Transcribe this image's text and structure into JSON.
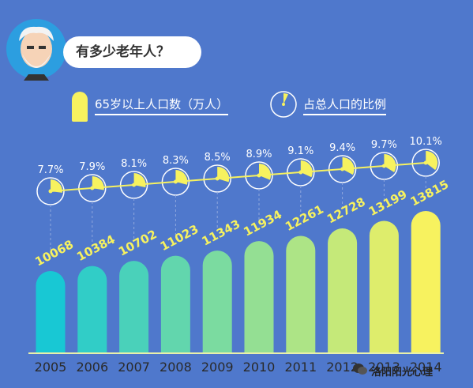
{
  "title": "有多少老年人？",
  "legend": {
    "population_label": "65岁以上人口数（万人）",
    "ratio_label": "占总人口的比例"
  },
  "credit": "洛阳阳光心理",
  "colors": {
    "background": "#4f78cc",
    "bar_start": "#18c8d4",
    "bar_end": "#f7f25f",
    "value_label": "#f7f25f"
  },
  "chart_data": {
    "type": "bar",
    "categories": [
      "2005",
      "2006",
      "2007",
      "2008",
      "2009",
      "2010",
      "2011",
      "2012",
      "2013",
      "2014"
    ],
    "series": [
      {
        "name": "65岁以上人口数（万人）",
        "values": [
          10068,
          10384,
          10702,
          11023,
          11343,
          11934,
          12261,
          12728,
          13199,
          13815
        ]
      },
      {
        "name": "占总人口的比例",
        "values": [
          7.7,
          7.9,
          8.1,
          8.3,
          8.5,
          8.9,
          9.1,
          9.4,
          9.7,
          10.1
        ],
        "unit": "%"
      }
    ],
    "bar_labels": [
      "10068",
      "10384",
      "10702",
      "11023",
      "11343",
      "11934",
      "12261",
      "12728",
      "13199",
      "13815"
    ],
    "ratio_labels": [
      "7.7%",
      "7.9%",
      "8.1%",
      "8.3%",
      "8.5%",
      "8.9%",
      "9.1%",
      "9.4%",
      "9.7%",
      "10.1%"
    ],
    "grid": false
  }
}
